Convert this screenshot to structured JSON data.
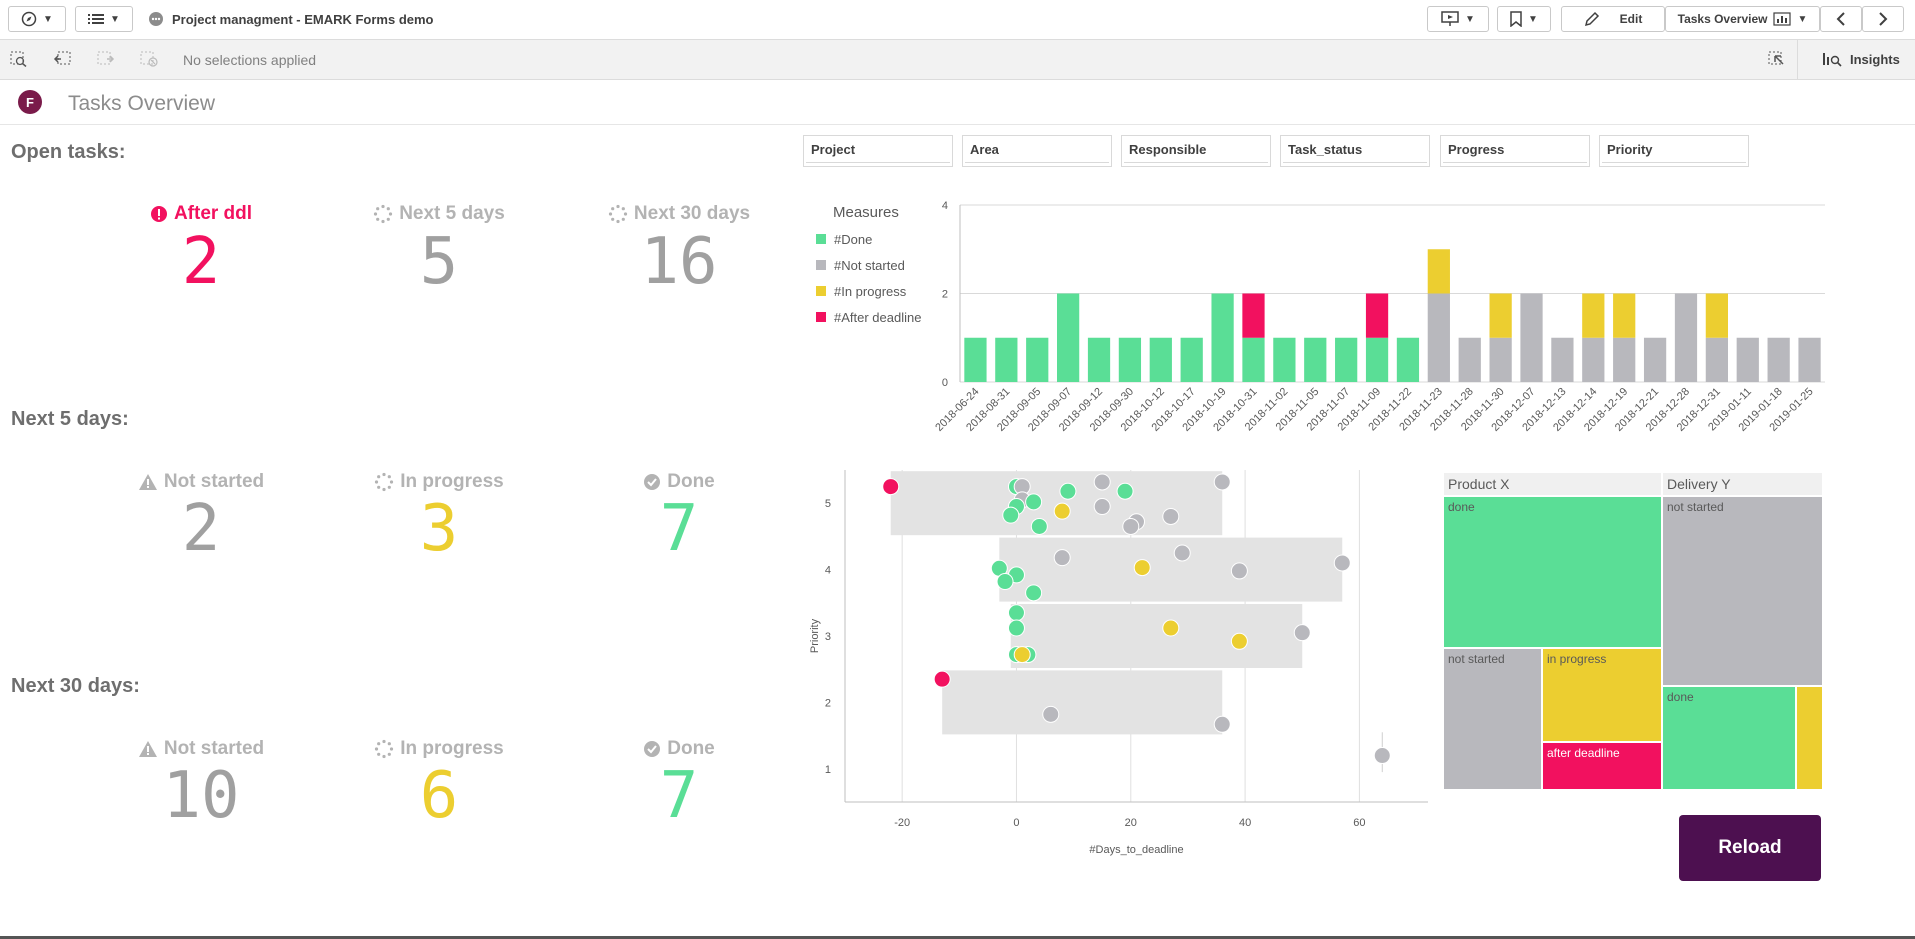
{
  "app": {
    "title": "Project managment - EMARK Forms demo",
    "edit_label": "Edit",
    "sheet_nav_label": "Tasks Overview",
    "insights_label": "Insights",
    "selections_text": "No selections applied"
  },
  "sheet": {
    "logo_letter": "F",
    "title": "Tasks Overview"
  },
  "colors": {
    "done": "#5ade96",
    "not_started": "#b8b8bd",
    "in_progress": "#ecce30",
    "after_deadline": "#f2115f",
    "reload": "#4d1050"
  },
  "open_tasks": {
    "heading": "Open tasks:",
    "kpis": [
      {
        "label": "After ddl",
        "value": "2",
        "icon": "alert-icon"
      },
      {
        "label": "Next 5 days",
        "value": "5",
        "icon": "spinner-icon"
      },
      {
        "label": "Next 30 days",
        "value": "16",
        "icon": "spinner-icon"
      }
    ]
  },
  "next5": {
    "heading": "Next 5 days:",
    "kpis": [
      {
        "label": "Not started",
        "value": "2",
        "icon": "warning-icon"
      },
      {
        "label": "In progress",
        "value": "3",
        "icon": "spinner-icon"
      },
      {
        "label": "Done",
        "value": "7",
        "icon": "check-icon"
      }
    ]
  },
  "next30": {
    "heading": "Next 30 days:",
    "kpis": [
      {
        "label": "Not started",
        "value": "10",
        "icon": "warning-icon"
      },
      {
        "label": "In progress",
        "value": "6",
        "icon": "spinner-icon"
      },
      {
        "label": "Done",
        "value": "7",
        "icon": "check-icon"
      }
    ]
  },
  "filters": [
    "Project",
    "Area",
    "Responsible",
    "Task_status",
    "Progress",
    "Priority"
  ],
  "chart_data": [
    {
      "type": "bar",
      "stacked": true,
      "legend_title": "Measures",
      "legend_position": "left",
      "categories": [
        "2018-06-24",
        "2018-08-31",
        "2018-09-05",
        "2018-09-07",
        "2018-09-12",
        "2018-09-30",
        "2018-10-12",
        "2018-10-17",
        "2018-10-19",
        "2018-10-31",
        "2018-11-02",
        "2018-11-05",
        "2018-11-07",
        "2018-11-09",
        "2018-11-22",
        "2018-11-23",
        "2018-11-28",
        "2018-11-30",
        "2018-12-07",
        "2018-12-13",
        "2018-12-14",
        "2018-12-19",
        "2018-12-21",
        "2018-12-28",
        "2018-12-31",
        "2019-01-11",
        "2019-01-18",
        "2019-01-25"
      ],
      "series": [
        {
          "name": "#Done",
          "values": [
            1,
            1,
            1,
            2,
            1,
            1,
            1,
            1,
            2,
            1,
            1,
            1,
            1,
            1,
            1,
            0,
            0,
            0,
            0,
            0,
            0,
            0,
            0,
            0,
            0,
            0,
            0,
            0
          ]
        },
        {
          "name": "#Not started",
          "values": [
            0,
            0,
            0,
            0,
            0,
            0,
            0,
            0,
            0,
            0,
            0,
            0,
            0,
            0,
            0,
            2,
            1,
            1,
            2,
            1,
            1,
            1,
            1,
            2,
            1,
            1,
            1,
            1
          ]
        },
        {
          "name": "#In progress",
          "values": [
            0,
            0,
            0,
            0,
            0,
            0,
            0,
            0,
            0,
            0,
            0,
            0,
            0,
            0,
            0,
            1,
            0,
            1,
            0,
            0,
            1,
            1,
            0,
            0,
            1,
            0,
            0,
            0
          ]
        },
        {
          "name": "#After deadline",
          "values": [
            0,
            0,
            0,
            0,
            0,
            0,
            0,
            0,
            0,
            1,
            0,
            0,
            0,
            1,
            0,
            0,
            0,
            0,
            0,
            0,
            0,
            0,
            0,
            0,
            0,
            0,
            0,
            0
          ]
        }
      ],
      "yticks": [
        "0",
        "2",
        "4"
      ],
      "ylim": [
        0,
        4
      ],
      "grid": true
    },
    {
      "type": "scatter",
      "xlabel": "#Days_to_deadline",
      "ylabel": "Priority",
      "xticks": [
        "-20",
        "0",
        "20",
        "40",
        "60"
      ],
      "yticks": [
        "1",
        "2",
        "3",
        "4",
        "5"
      ],
      "xlim": [
        -30,
        72
      ],
      "ylim": [
        0.5,
        5.5
      ],
      "range_bands": [
        {
          "y": 5,
          "x0": -22,
          "x1": 36
        },
        {
          "y": 4,
          "x0": -3,
          "x1": 57
        },
        {
          "y": 3,
          "x0": -1,
          "x1": 50
        },
        {
          "y": 2,
          "x0": -13,
          "x1": 36
        }
      ],
      "points": [
        {
          "x": -22,
          "y": 5.25,
          "status": "after_deadline"
        },
        {
          "x": 0,
          "y": 5.25,
          "status": "done"
        },
        {
          "x": 1,
          "y": 5.25,
          "status": "not_started"
        },
        {
          "x": 1,
          "y": 5.05,
          "status": "not_started"
        },
        {
          "x": 3,
          "y": 5.02,
          "status": "done"
        },
        {
          "x": 9,
          "y": 5.18,
          "status": "done"
        },
        {
          "x": 15,
          "y": 5.32,
          "status": "not_started"
        },
        {
          "x": 19,
          "y": 5.18,
          "status": "done"
        },
        {
          "x": 36,
          "y": 5.32,
          "status": "not_started"
        },
        {
          "x": 0,
          "y": 4.95,
          "status": "done"
        },
        {
          "x": -1,
          "y": 4.82,
          "status": "done"
        },
        {
          "x": 8,
          "y": 4.88,
          "status": "in_progress"
        },
        {
          "x": 15,
          "y": 4.95,
          "status": "not_started"
        },
        {
          "x": 21,
          "y": 4.72,
          "status": "not_started"
        },
        {
          "x": 27,
          "y": 4.8,
          "status": "not_started"
        },
        {
          "x": 4,
          "y": 4.65,
          "status": "done"
        },
        {
          "x": 20,
          "y": 4.65,
          "status": "not_started"
        },
        {
          "x": -3,
          "y": 4.02,
          "status": "done"
        },
        {
          "x": 8,
          "y": 4.18,
          "status": "not_started"
        },
        {
          "x": 22,
          "y": 4.03,
          "status": "in_progress"
        },
        {
          "x": 29,
          "y": 4.25,
          "status": "not_started"
        },
        {
          "x": 39,
          "y": 3.98,
          "status": "not_started"
        },
        {
          "x": 57,
          "y": 4.1,
          "status": "not_started"
        },
        {
          "x": 0,
          "y": 3.92,
          "status": "done"
        },
        {
          "x": -2,
          "y": 3.82,
          "status": "done"
        },
        {
          "x": 3,
          "y": 3.65,
          "status": "done"
        },
        {
          "x": 0,
          "y": 3.35,
          "status": "done"
        },
        {
          "x": 0,
          "y": 3.12,
          "status": "done"
        },
        {
          "x": 27,
          "y": 3.12,
          "status": "in_progress"
        },
        {
          "x": 39,
          "y": 2.92,
          "status": "in_progress"
        },
        {
          "x": 50,
          "y": 3.05,
          "status": "not_started"
        },
        {
          "x": 0,
          "y": 2.72,
          "status": "done"
        },
        {
          "x": 2,
          "y": 2.72,
          "status": "done"
        },
        {
          "x": 1,
          "y": 2.72,
          "status": "in_progress"
        },
        {
          "x": -13,
          "y": 2.35,
          "status": "after_deadline"
        },
        {
          "x": 6,
          "y": 1.82,
          "status": "not_started"
        },
        {
          "x": 36,
          "y": 1.67,
          "status": "not_started"
        },
        {
          "x": 64,
          "y": 1.2,
          "status": "not_started"
        }
      ]
    }
  ],
  "treemap": {
    "groups": [
      {
        "label": "Product X",
        "cells": [
          {
            "label": "done",
            "status": "done"
          },
          {
            "label": "not started",
            "status": "not_started"
          },
          {
            "label": "in progress",
            "status": "in_progress"
          },
          {
            "label": "after deadline",
            "status": "after_deadline"
          }
        ]
      },
      {
        "label": "Delivery Y",
        "cells": [
          {
            "label": "not started",
            "status": "not_started"
          },
          {
            "label": "done",
            "status": "done"
          },
          {
            "label": "",
            "status": "in_progress"
          }
        ]
      }
    ]
  },
  "reload_label": "Reload"
}
